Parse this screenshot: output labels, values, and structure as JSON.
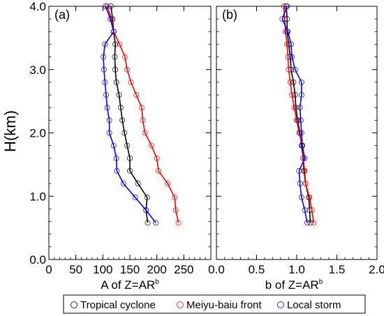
{
  "chart_data": [
    {
      "type": "line",
      "panel_label": "(a)",
      "xlabel": "A of Z=AR",
      "xlabel_superscript": "b",
      "ylabel": "H(km)",
      "xlim": [
        0,
        300
      ],
      "ylim": [
        0,
        4
      ],
      "x_ticks": [
        "0",
        "50",
        "100",
        "150",
        "200",
        "250"
      ],
      "y_ticks": [
        "0.0",
        "1.0",
        "2.0",
        "3.0",
        "4.0"
      ],
      "grid": false,
      "series": [
        {
          "name": "Tropical cyclone",
          "color": "#000000",
          "points": [
            [
              183,
              0.58
            ],
            [
              180,
              0.78
            ],
            [
              182,
              0.98
            ],
            [
              165,
              1.2
            ],
            [
              150,
              1.4
            ],
            [
              150,
              1.6
            ],
            [
              145,
              1.8
            ],
            [
              140,
              2.0
            ],
            [
              136,
              2.2
            ],
            [
              133,
              2.4
            ],
            [
              130,
              2.6
            ],
            [
              125,
              2.8
            ],
            [
              123,
              3.0
            ],
            [
              122,
              3.2
            ],
            [
              123,
              3.4
            ],
            [
              120,
              3.6
            ],
            [
              118,
              3.8
            ],
            [
              115,
              4.0
            ]
          ]
        },
        {
          "name": "Meiyu-baiu front",
          "color": "#ff0000",
          "points": [
            [
              240,
              0.58
            ],
            [
              235,
              0.78
            ],
            [
              233,
              0.98
            ],
            [
              220,
              1.2
            ],
            [
              203,
              1.4
            ],
            [
              200,
              1.6
            ],
            [
              190,
              1.8
            ],
            [
              178,
              2.0
            ],
            [
              174,
              2.2
            ],
            [
              172,
              2.4
            ],
            [
              162,
              2.6
            ],
            [
              152,
              2.8
            ],
            [
              145,
              3.0
            ],
            [
              141,
              3.2
            ],
            [
              131,
              3.4
            ],
            [
              120,
              3.6
            ],
            [
              116,
              3.8
            ],
            [
              108,
              4.0
            ]
          ]
        },
        {
          "name": "Local storm",
          "color": "#0000ff",
          "points": [
            [
              198,
              0.58
            ],
            [
              180,
              0.78
            ],
            [
              160,
              0.98
            ],
            [
              138,
              1.2
            ],
            [
              126,
              1.4
            ],
            [
              125,
              1.6
            ],
            [
              120,
              1.8
            ],
            [
              112,
              2.0
            ],
            [
              112,
              2.2
            ],
            [
              108,
              2.4
            ],
            [
              106,
              2.6
            ],
            [
              104,
              2.8
            ],
            [
              102,
              3.0
            ],
            [
              101,
              3.2
            ],
            [
              104,
              3.4
            ],
            [
              120,
              3.6
            ],
            [
              114,
              3.8
            ],
            [
              105,
              4.0
            ]
          ]
        }
      ]
    },
    {
      "type": "line",
      "panel_label": "(b)",
      "xlabel": "b of Z=AR",
      "xlabel_superscript": "b",
      "xlim": [
        0,
        2
      ],
      "ylim": [
        0,
        4
      ],
      "x_ticks": [
        "0.0",
        "0.5",
        "1.0",
        "1.5",
        "2.0"
      ],
      "grid": false,
      "series": [
        {
          "name": "Tropical cyclone",
          "color": "#000000",
          "points": [
            [
              1.17,
              0.58
            ],
            [
              1.16,
              0.78
            ],
            [
              1.15,
              0.98
            ],
            [
              1.11,
              1.2
            ],
            [
              1.09,
              1.4
            ],
            [
              1.08,
              1.6
            ],
            [
              1.06,
              1.8
            ],
            [
              1.04,
              2.0
            ],
            [
              1.01,
              2.2
            ],
            [
              0.99,
              2.4
            ],
            [
              0.98,
              2.6
            ],
            [
              0.96,
              2.8
            ],
            [
              0.93,
              3.0
            ],
            [
              0.92,
              3.2
            ],
            [
              0.9,
              3.4
            ],
            [
              0.88,
              3.6
            ],
            [
              0.88,
              3.8
            ],
            [
              0.87,
              4.0
            ]
          ]
        },
        {
          "name": "Meiyu-baiu front",
          "color": "#ff0000",
          "points": [
            [
              1.21,
              0.58
            ],
            [
              1.19,
              0.78
            ],
            [
              1.16,
              0.98
            ],
            [
              1.11,
              1.2
            ],
            [
              1.1,
              1.4
            ],
            [
              1.08,
              1.6
            ],
            [
              1.07,
              1.8
            ],
            [
              1.03,
              2.0
            ],
            [
              1.0,
              2.2
            ],
            [
              0.97,
              2.4
            ],
            [
              0.94,
              2.6
            ],
            [
              0.92,
              2.8
            ],
            [
              0.9,
              3.0
            ],
            [
              0.89,
              3.2
            ],
            [
              0.88,
              3.4
            ],
            [
              0.86,
              3.6
            ],
            [
              0.85,
              3.8
            ],
            [
              0.84,
              4.0
            ]
          ]
        },
        {
          "name": "Local storm",
          "color": "#0000ff",
          "points": [
            [
              1.13,
              0.58
            ],
            [
              1.1,
              0.78
            ],
            [
              1.06,
              0.98
            ],
            [
              1.04,
              1.2
            ],
            [
              1.03,
              1.4
            ],
            [
              1.1,
              1.6
            ],
            [
              1.07,
              1.8
            ],
            [
              1.06,
              2.0
            ],
            [
              1.05,
              2.2
            ],
            [
              1.04,
              2.4
            ],
            [
              1.06,
              2.6
            ],
            [
              1.06,
              2.8
            ],
            [
              0.98,
              3.0
            ],
            [
              0.94,
              3.2
            ],
            [
              0.93,
              3.4
            ],
            [
              0.89,
              3.6
            ],
            [
              0.82,
              3.8
            ],
            [
              0.88,
              4.0
            ]
          ]
        }
      ]
    }
  ]
}
